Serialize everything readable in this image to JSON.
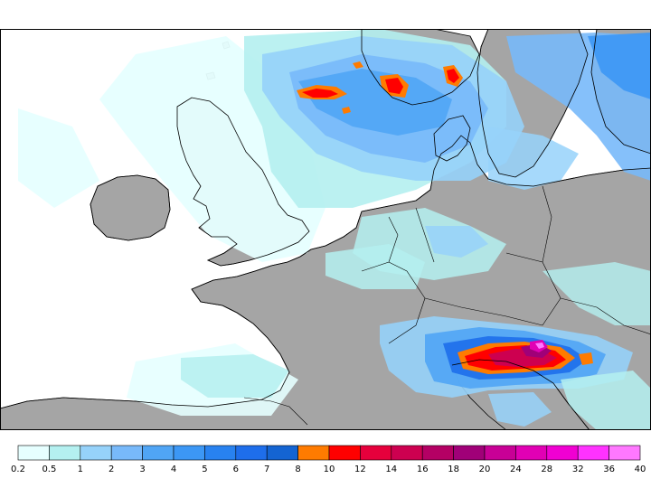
{
  "legend": {
    "colors": [
      "#e6ffff",
      "#b4f0f0",
      "#96d2fa",
      "#78b9fa",
      "#50a5f5",
      "#3c97f5",
      "#2882f0",
      "#1e6eeb",
      "#1464d2",
      "#ff7b00",
      "#ff0000",
      "#e6003c",
      "#cd0050",
      "#b40064",
      "#a00078",
      "#c80096",
      "#e100b4",
      "#f000d2",
      "#ff32ff",
      "#ff78ff"
    ],
    "ticks": [
      "0.2",
      "0.5",
      "1",
      "2",
      "3",
      "4",
      "5",
      "6",
      "7",
      "8",
      "10",
      "12",
      "14",
      "16",
      "18",
      "20",
      "24",
      "28",
      "32",
      "36",
      "40"
    ]
  },
  "map_colors": {
    "land": "#a5a5a5",
    "sea": "#ffffff",
    "coast": "#000000"
  }
}
